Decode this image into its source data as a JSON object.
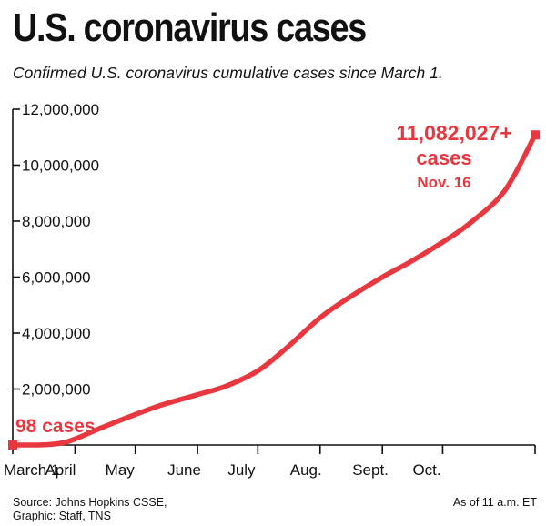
{
  "header": {
    "title": "U.S. coronavirus cases",
    "subtitle": "Confirmed U.S. coronavirus cumulative cases since March 1."
  },
  "chart_data": {
    "type": "line",
    "title": "U.S. coronavirus cases",
    "subtitle": "Confirmed U.S. coronavirus cumulative cases since March 1.",
    "ylim": [
      0,
      12000000
    ],
    "y_ticks": [
      2000000,
      4000000,
      6000000,
      8000000,
      10000000,
      12000000
    ],
    "y_tick_labels": [
      "2,000,000",
      "4,000,000",
      "6,000,000",
      "8,000,000",
      "10,000,000",
      "12,000,000"
    ],
    "x_tick_labels": [
      "March 1",
      "April",
      "May",
      "June",
      "July",
      "Aug.",
      "Sept.",
      "Oct."
    ],
    "x_tick_dates": [
      "2020-03-01",
      "2020-04-01",
      "2020-05-01",
      "2020-06-01",
      "2020-07-01",
      "2020-08-01",
      "2020-09-01",
      "2020-10-01"
    ],
    "grid": false,
    "line_color": "#e8373f",
    "series": [
      {
        "values": [
          {
            "date": "2020-03-01",
            "cases": 98
          },
          {
            "date": "2020-03-15",
            "cases": 3500
          },
          {
            "date": "2020-03-25",
            "cases": 65000
          },
          {
            "date": "2020-04-01",
            "cases": 215000
          },
          {
            "date": "2020-04-15",
            "cases": 640000
          },
          {
            "date": "2020-05-01",
            "cases": 1090000
          },
          {
            "date": "2020-05-15",
            "cases": 1450000
          },
          {
            "date": "2020-06-01",
            "cases": 1800000
          },
          {
            "date": "2020-06-15",
            "cases": 2100000
          },
          {
            "date": "2020-07-01",
            "cases": 2650000
          },
          {
            "date": "2020-07-15",
            "cases": 3450000
          },
          {
            "date": "2020-08-01",
            "cases": 4550000
          },
          {
            "date": "2020-08-15",
            "cases": 5250000
          },
          {
            "date": "2020-09-01",
            "cases": 6000000
          },
          {
            "date": "2020-09-15",
            "cases": 6550000
          },
          {
            "date": "2020-10-01",
            "cases": 7250000
          },
          {
            "date": "2020-10-15",
            "cases": 7950000
          },
          {
            "date": "2020-11-01",
            "cases": 9100000
          },
          {
            "date": "2020-11-16",
            "cases": 11082027
          }
        ]
      }
    ],
    "annotations": {
      "start": {
        "date": "2020-03-01",
        "cases": 98,
        "label": "98 cases"
      },
      "end": {
        "date": "2020-11-16",
        "cases": 11082027,
        "label_lines": [
          "11,082,027+",
          "cases",
          "Nov. 16"
        ]
      }
    }
  },
  "footer": {
    "source_lines": [
      "Source: Johns Hopkins CSSE,",
      "Graphic: Staff, TNS"
    ],
    "as_of": "As of 11 a.m. ET"
  }
}
